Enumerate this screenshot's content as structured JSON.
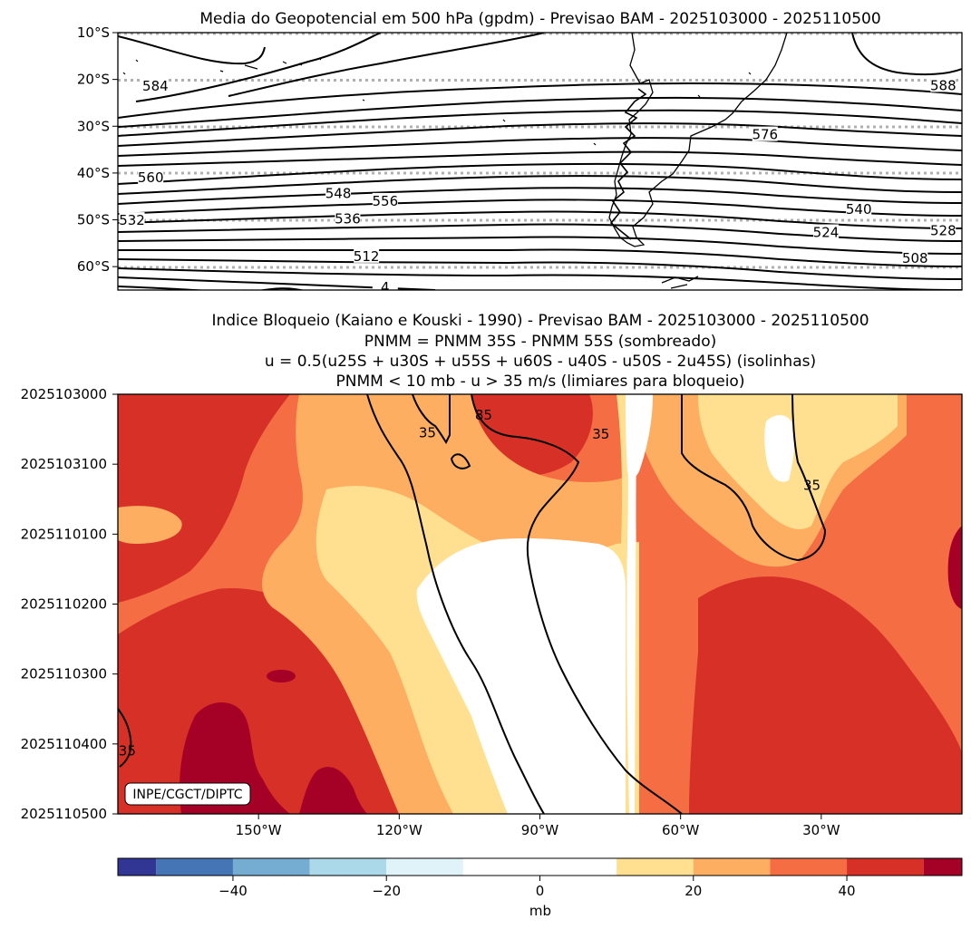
{
  "chart_data": [
    {
      "type": "contour",
      "title": "Media do Geopotencial em 500 hPa (gpdm) - Previsao BAM - 2025103000 - 2025110500",
      "units": "gpdm",
      "lat_range": [
        -65,
        -10
      ],
      "lon_range": [
        -180,
        0
      ],
      "lat_ticks": [
        "10°S",
        "20°S",
        "30°S",
        "40°S",
        "50°S",
        "60°S"
      ],
      "lat_tick_values": [
        -10,
        -20,
        -30,
        -40,
        -50,
        -60
      ],
      "contour_labels": [
        {
          "text": "584",
          "lon": -172,
          "lat": -21.6
        },
        {
          "text": "588",
          "lon": -4,
          "lat": -21.5
        },
        {
          "text": "576",
          "lon": -42,
          "lat": -32.0
        },
        {
          "text": "560",
          "lon": -173,
          "lat": -41.2
        },
        {
          "text": "548",
          "lon": -133,
          "lat": -44.6
        },
        {
          "text": "556",
          "lon": -123,
          "lat": -46.2
        },
        {
          "text": "536",
          "lon": -131,
          "lat": -50.0
        },
        {
          "text": "532",
          "lon": -177,
          "lat": -50.3
        },
        {
          "text": "540",
          "lon": -22,
          "lat": -48.0
        },
        {
          "text": "524",
          "lon": -29,
          "lat": -52.9
        },
        {
          "text": "528",
          "lon": -4,
          "lat": -52.5
        },
        {
          "text": "512",
          "lon": -127,
          "lat": -58.0
        },
        {
          "text": "508",
          "lon": -10,
          "lat": -58.4
        },
        {
          "text": "4",
          "lon": -123,
          "lat": -64.6
        }
      ]
    },
    {
      "type": "hovmoller",
      "title_lines": [
        "Indice Bloqueio (Kaiano e Kouski - 1990) - Previsao BAM - 2025103000 - 2025110500",
        "PNMM = PNMM 35S - PNMM 55S (sombreado)",
        "u = 0.5(u25S + u30S + u55S + u60S - u40S - u50S - 2u45S) (isolinhas)",
        "PNMM < 10 mb - u > 35 m/s (limiares para bloqueio)"
      ],
      "x_ticks": [
        "150°W",
        "120°W",
        "90°W",
        "60°W",
        "30°W"
      ],
      "x_tick_values": [
        -150,
        -120,
        -90,
        -60,
        -30
      ],
      "x_range": [
        -180,
        0
      ],
      "y_ticks": [
        "2025103000",
        "2025103100",
        "2025110100",
        "2025110200",
        "2025110300",
        "2025110400",
        "2025110500"
      ],
      "contour_labels": [
        {
          "text": "35",
          "lon": -114,
          "lat_or_day": 0.55
        },
        {
          "text": "85",
          "lon": -102,
          "lat_or_day": 0.3
        },
        {
          "text": "35",
          "lon": -77,
          "lat_or_day": 0.57
        },
        {
          "text": "35",
          "lon": -32,
          "lat_or_day": 1.3
        },
        {
          "text": "35",
          "lon": -178,
          "lat_or_day": 5.1
        }
      ],
      "watermark": "INPE/CGCT/DIPTC",
      "colorbar": {
        "label": "mb",
        "ticks": [
          "−40",
          "−20",
          "0",
          "20",
          "40"
        ],
        "tick_values": [
          -40,
          -20,
          0,
          20,
          40
        ],
        "range": [
          -55,
          55
        ],
        "bounds": [
          -55,
          -50,
          -40,
          -30,
          -20,
          -10,
          10,
          20,
          30,
          40,
          50,
          55
        ],
        "colors": [
          "#313695",
          "#4575b4",
          "#74add1",
          "#abd9e9",
          "#e0f3f8",
          "#ffffff",
          "#fee090",
          "#fdae61",
          "#f46d43",
          "#d73027",
          "#a50026"
        ]
      }
    }
  ]
}
